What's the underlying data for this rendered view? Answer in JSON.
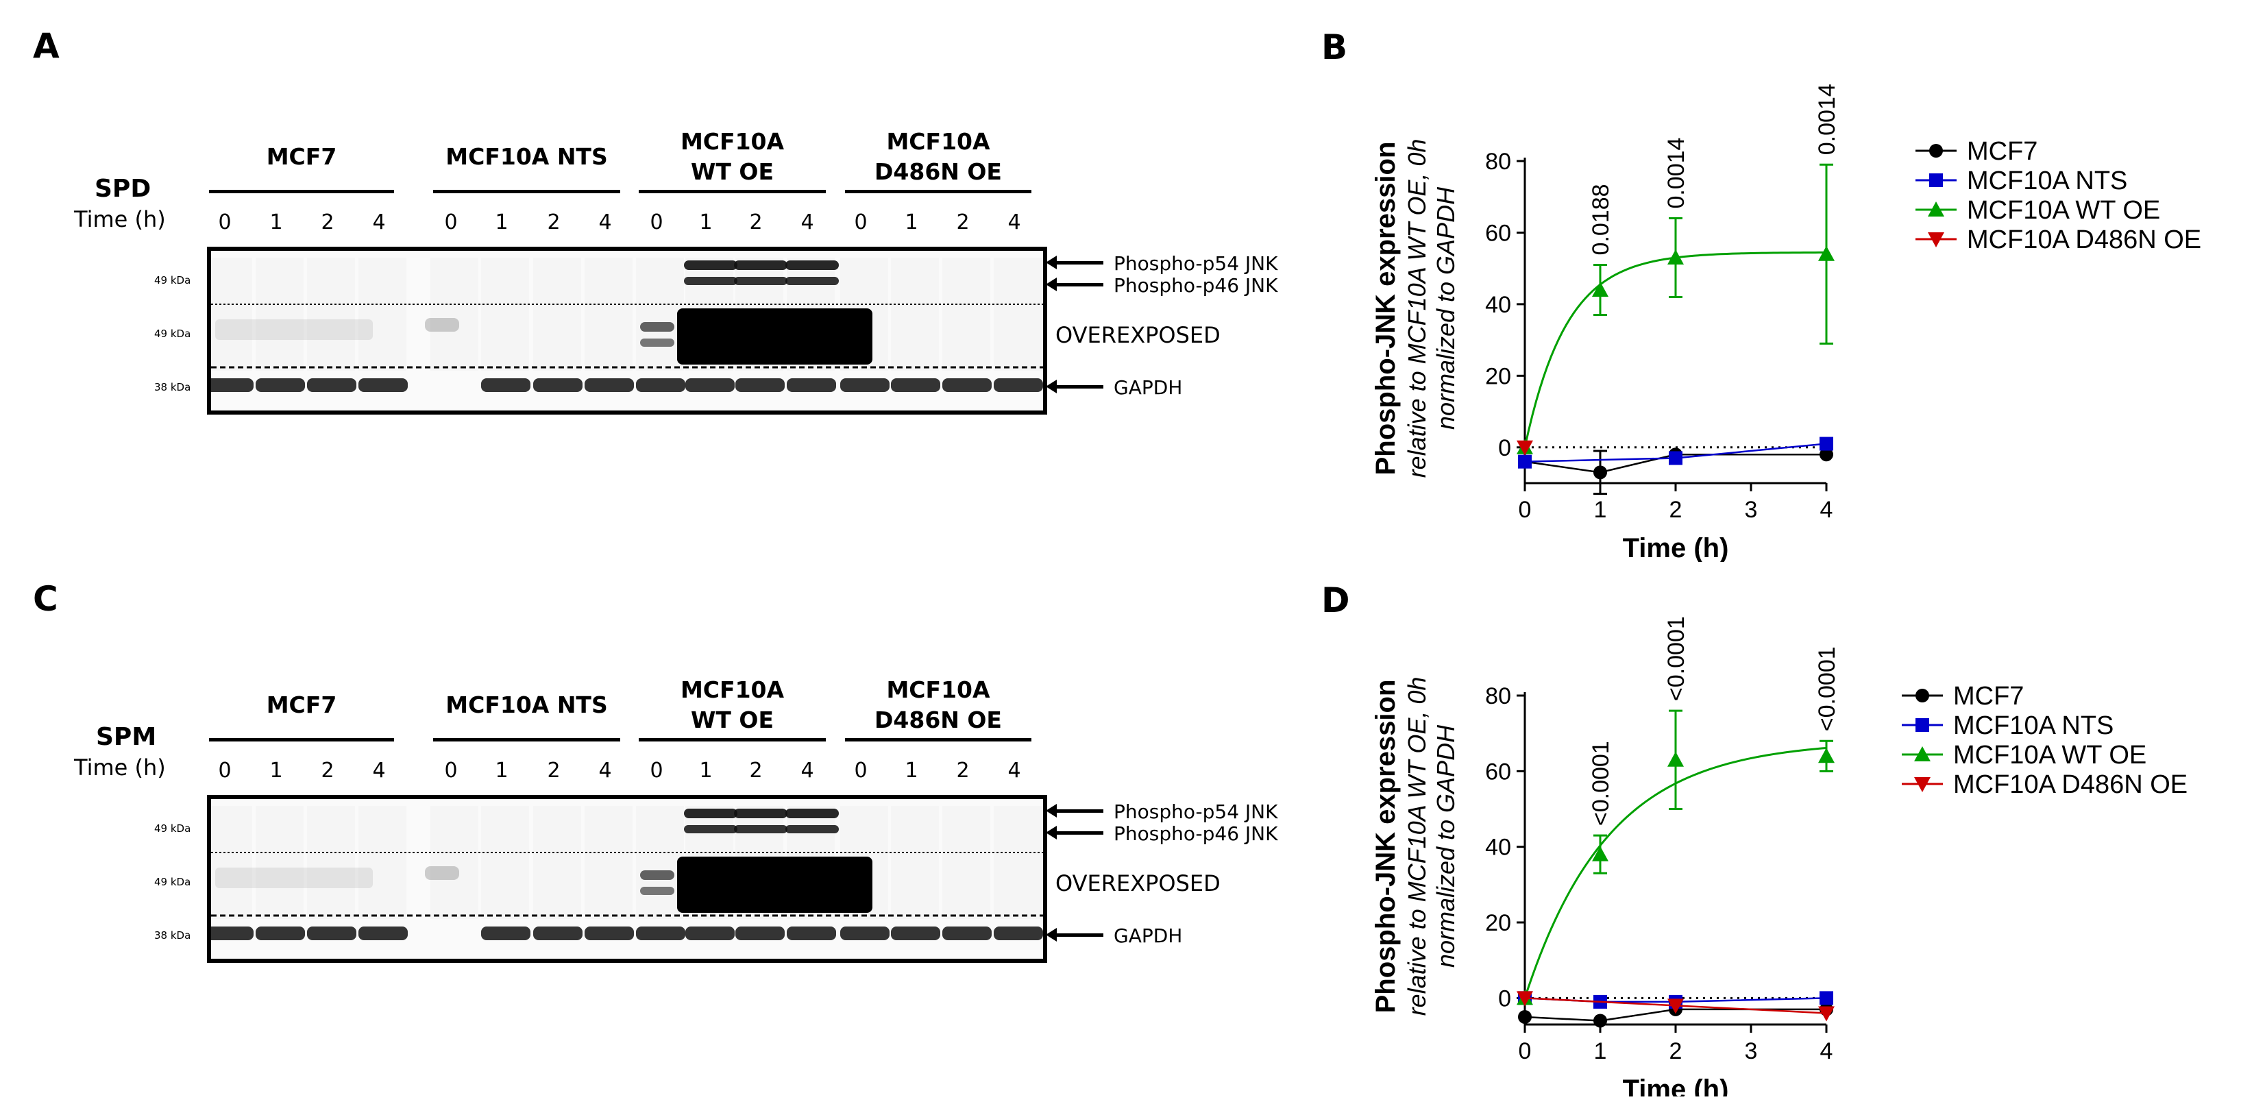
{
  "panels": {
    "A": {
      "label": "A",
      "treatment": "SPD",
      "time_label": "Time (h)",
      "groups": [
        {
          "line1": "MCF7",
          "line2": ""
        },
        {
          "line1": "MCF10A NTS",
          "line2": ""
        },
        {
          "line1": "MCF10A",
          "line2": "WT OE"
        },
        {
          "line1": "MCF10A",
          "line2": "D486N OE"
        }
      ],
      "lanes": [
        "0",
        "1",
        "2",
        "4",
        "0",
        "1",
        "2",
        "4",
        "0",
        "1",
        "2",
        "4",
        "0",
        "1",
        "2",
        "4"
      ],
      "mw": [
        "49 kDa",
        "49 kDa",
        "38 kDa"
      ],
      "bands": [
        "Phospho-p54 JNK",
        "Phospho-p46 JNK",
        "OVEREXPOSED",
        "GAPDH"
      ]
    },
    "C": {
      "label": "C",
      "treatment": "SPM",
      "time_label": "Time (h)",
      "groups": [
        {
          "line1": "MCF7",
          "line2": ""
        },
        {
          "line1": "MCF10A NTS",
          "line2": ""
        },
        {
          "line1": "MCF10A",
          "line2": "WT OE"
        },
        {
          "line1": "MCF10A",
          "line2": "D486N OE"
        }
      ],
      "lanes": [
        "0",
        "1",
        "2",
        "4",
        "0",
        "1",
        "2",
        "4",
        "0",
        "1",
        "2",
        "4",
        "0",
        "1",
        "2",
        "4"
      ],
      "mw": [
        "49 kDa",
        "49 kDa",
        "38 kDa"
      ],
      "bands": [
        "Phospho-p54 JNK",
        "Phospho-p46 JNK",
        "OVEREXPOSED",
        "GAPDH"
      ]
    }
  },
  "chart_data": [
    {
      "panel": "B",
      "type": "scatter",
      "ylabel_bold": "Phospho-JNK expression",
      "ylabel_italic": [
        "relative to MCF10A WT OE, 0h",
        "normalized to GAPDH"
      ],
      "xlabel": "Time (h)",
      "xlim": [
        0,
        4
      ],
      "ylim": [
        -10,
        80
      ],
      "xticks": [
        0,
        1,
        2,
        3,
        4
      ],
      "yticks": [
        0,
        20,
        40,
        60,
        80
      ],
      "x": [
        0,
        1,
        2,
        4
      ],
      "series": [
        {
          "name": "MCF7",
          "color": "#000000",
          "marker": "circle",
          "values": [
            -4,
            -7,
            -2,
            -2
          ],
          "errors": [
            0,
            6,
            0,
            0
          ]
        },
        {
          "name": "MCF10A NTS",
          "color": "#0000cc",
          "marker": "square",
          "values": [
            -4,
            null,
            -3,
            1
          ],
          "errors": [
            0,
            0,
            0,
            0
          ]
        },
        {
          "name": "MCF10A WT OE",
          "color": "#00a000",
          "marker": "triangle-up",
          "values": [
            0,
            44,
            53,
            54
          ],
          "errors": [
            0,
            7,
            11,
            25
          ]
        },
        {
          "name": "MCF10A D486N OE",
          "color": "#cc0000",
          "marker": "triangle-down",
          "values": [
            0,
            null,
            null,
            null
          ],
          "errors": [
            0,
            0,
            0,
            0
          ]
        }
      ],
      "p_values": [
        "0.0188",
        "0.0014",
        "0.0014"
      ],
      "p_x": [
        1,
        2,
        4
      ]
    },
    {
      "panel": "D",
      "type": "scatter",
      "ylabel_bold": "Phospho-JNK expression",
      "ylabel_italic": [
        "relative to MCF10A WT OE, 0h",
        "normalized to GAPDH"
      ],
      "xlabel": "Time (h)",
      "xlim": [
        0,
        4
      ],
      "ylim": [
        -7,
        80
      ],
      "xticks": [
        0,
        1,
        2,
        3,
        4
      ],
      "yticks": [
        0,
        20,
        40,
        60,
        80
      ],
      "x": [
        0,
        1,
        2,
        4
      ],
      "series": [
        {
          "name": "MCF7",
          "color": "#000000",
          "marker": "circle",
          "values": [
            -5,
            -6,
            -3,
            -3
          ],
          "errors": [
            0,
            0,
            0,
            0
          ]
        },
        {
          "name": "MCF10A NTS",
          "color": "#0000cc",
          "marker": "square",
          "values": [
            0,
            -1,
            -1,
            0
          ],
          "errors": [
            0,
            0,
            0,
            0
          ]
        },
        {
          "name": "MCF10A WT OE",
          "color": "#00a000",
          "marker": "triangle-up",
          "values": [
            0,
            38,
            63,
            64
          ],
          "errors": [
            0,
            5,
            13,
            4
          ]
        },
        {
          "name": "MCF10A D486N OE",
          "color": "#cc0000",
          "marker": "triangle-down",
          "values": [
            0,
            null,
            -2,
            -4
          ],
          "errors": [
            0,
            0,
            0,
            0
          ]
        }
      ],
      "p_values": [
        "<0.0001",
        "<0.0001",
        "<0.0001"
      ],
      "p_x": [
        1,
        2,
        4
      ]
    }
  ]
}
